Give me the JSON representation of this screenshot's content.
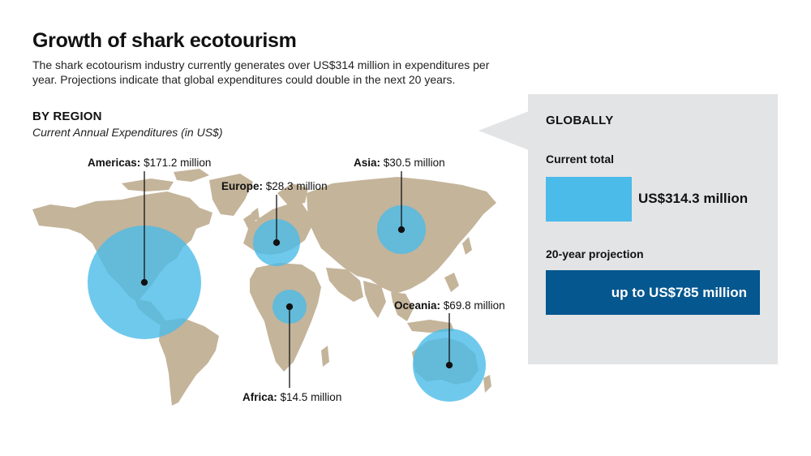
{
  "title": "Growth of shark ecotourism",
  "subtitle": "The shark ecotourism industry currently generates over US$314 million in expenditures per year. Projections indicate that global expenditures could double in the next 20 years.",
  "colors": {
    "land": "#c4b49a",
    "bubble": "#4bbbe9",
    "projection": "#05578f",
    "panel": "#e3e4e5"
  },
  "chart_data": [
    {
      "type": "bubble-map",
      "title": "BY REGION",
      "subtitle": "Current Annual Expenditures (in US$)",
      "unit": "US$ million",
      "regions": [
        {
          "name": "Americas",
          "value": 171.2,
          "value_label": "$171.2 million"
        },
        {
          "name": "Europe",
          "value": 28.3,
          "value_label": "$28.3 million"
        },
        {
          "name": "Asia",
          "value": 30.5,
          "value_label": "$30.5 million"
        },
        {
          "name": "Africa",
          "value": 14.5,
          "value_label": "$14.5 million"
        },
        {
          "name": "Oceania",
          "value": 69.8,
          "value_label": "$69.8 million"
        }
      ]
    },
    {
      "type": "bar",
      "title": "GLOBALLY",
      "unit": "US$ million",
      "series": [
        {
          "label": "Current total",
          "value": 314.3,
          "value_label": "US$314.3 million"
        },
        {
          "label": "20-year projection",
          "value": 785,
          "value_label": "up to US$785 million"
        }
      ]
    }
  ]
}
